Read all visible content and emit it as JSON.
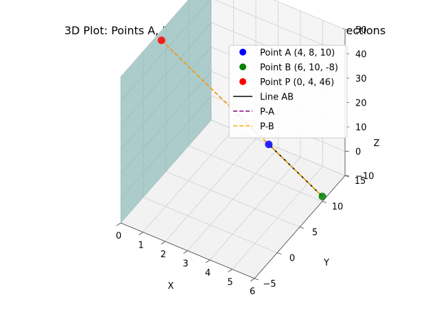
{
  "chart_data": {
    "type": "scatter",
    "title": "3D Plot: Points A, B, P, Line AB, YZ-Plane, and Connections",
    "xlabel": "X",
    "ylabel": "Y",
    "zlabel": "Z",
    "xlim": [
      0,
      6
    ],
    "ylim": [
      -5,
      15
    ],
    "zlim": [
      -10,
      50
    ],
    "x_ticks": [
      "0",
      "1",
      "2",
      "3",
      "4",
      "5",
      "6"
    ],
    "y_ticks": [
      "−5",
      "0",
      "5",
      "10",
      "15"
    ],
    "z_ticks": [
      "−10",
      "0",
      "10",
      "20",
      "30",
      "40",
      "50"
    ],
    "grid": true,
    "legend_position": "top-right",
    "points": [
      {
        "name": "Point A (4, 8, 10)",
        "x": 4,
        "y": 8,
        "z": 10,
        "color": "#0000ff"
      },
      {
        "name": "Point B (6, 10, -8)",
        "x": 6,
        "y": 10,
        "z": -8,
        "color": "#008000"
      },
      {
        "name": "Point P (0, 4, 46)",
        "x": 0,
        "y": 4,
        "z": 46,
        "color": "#ff0000"
      }
    ],
    "lines": [
      {
        "name": "Line AB",
        "from": [
          4,
          8,
          10
        ],
        "to": [
          6,
          10,
          -8
        ],
        "color": "#000000",
        "dash": "solid"
      },
      {
        "name": "P-A",
        "from": [
          0,
          4,
          46
        ],
        "to": [
          4,
          8,
          10
        ],
        "color": "#800080",
        "dash": "dashed"
      },
      {
        "name": "P-B",
        "from": [
          0,
          4,
          46
        ],
        "to": [
          6,
          10,
          -8
        ],
        "color": "#ffa500",
        "dash": "dashed"
      }
    ],
    "plane": {
      "x": 0,
      "y_range": [
        -5,
        15
      ],
      "z_range": [
        -10,
        50
      ],
      "color": "#5fa7a7"
    }
  }
}
